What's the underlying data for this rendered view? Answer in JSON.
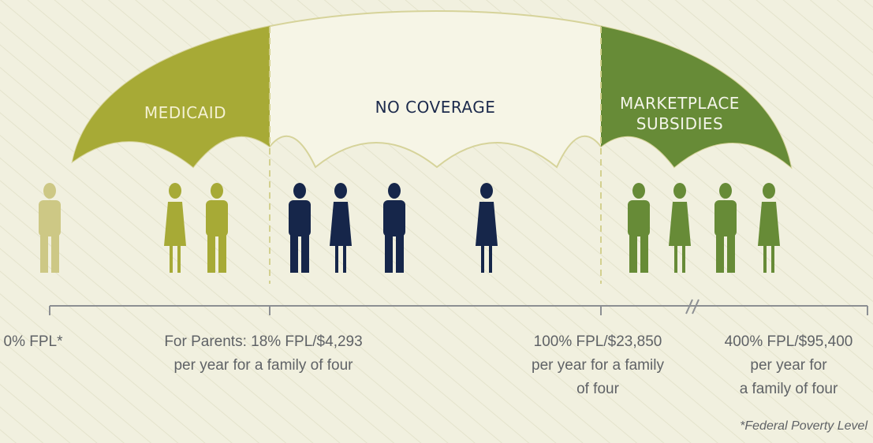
{
  "segments": [
    {
      "lines": [
        "MEDICAID"
      ]
    },
    {
      "lines": [
        "NO COVERAGE"
      ]
    },
    {
      "lines": [
        "MARKETPLACE",
        "SUBSIDIES"
      ]
    }
  ],
  "scale": [
    {
      "lines": [
        "0% FPL*"
      ]
    },
    {
      "lines": [
        "For Parents: 18% FPL/$4,293",
        "per year for a family of four"
      ]
    },
    {
      "lines": [
        "100% FPL/$23,850",
        "per year for a family",
        "of four"
      ]
    },
    {
      "lines": [
        "400% FPL/$95,400",
        "per year for",
        "a family of four"
      ]
    }
  ],
  "footnote": "*Federal Poverty Level"
}
